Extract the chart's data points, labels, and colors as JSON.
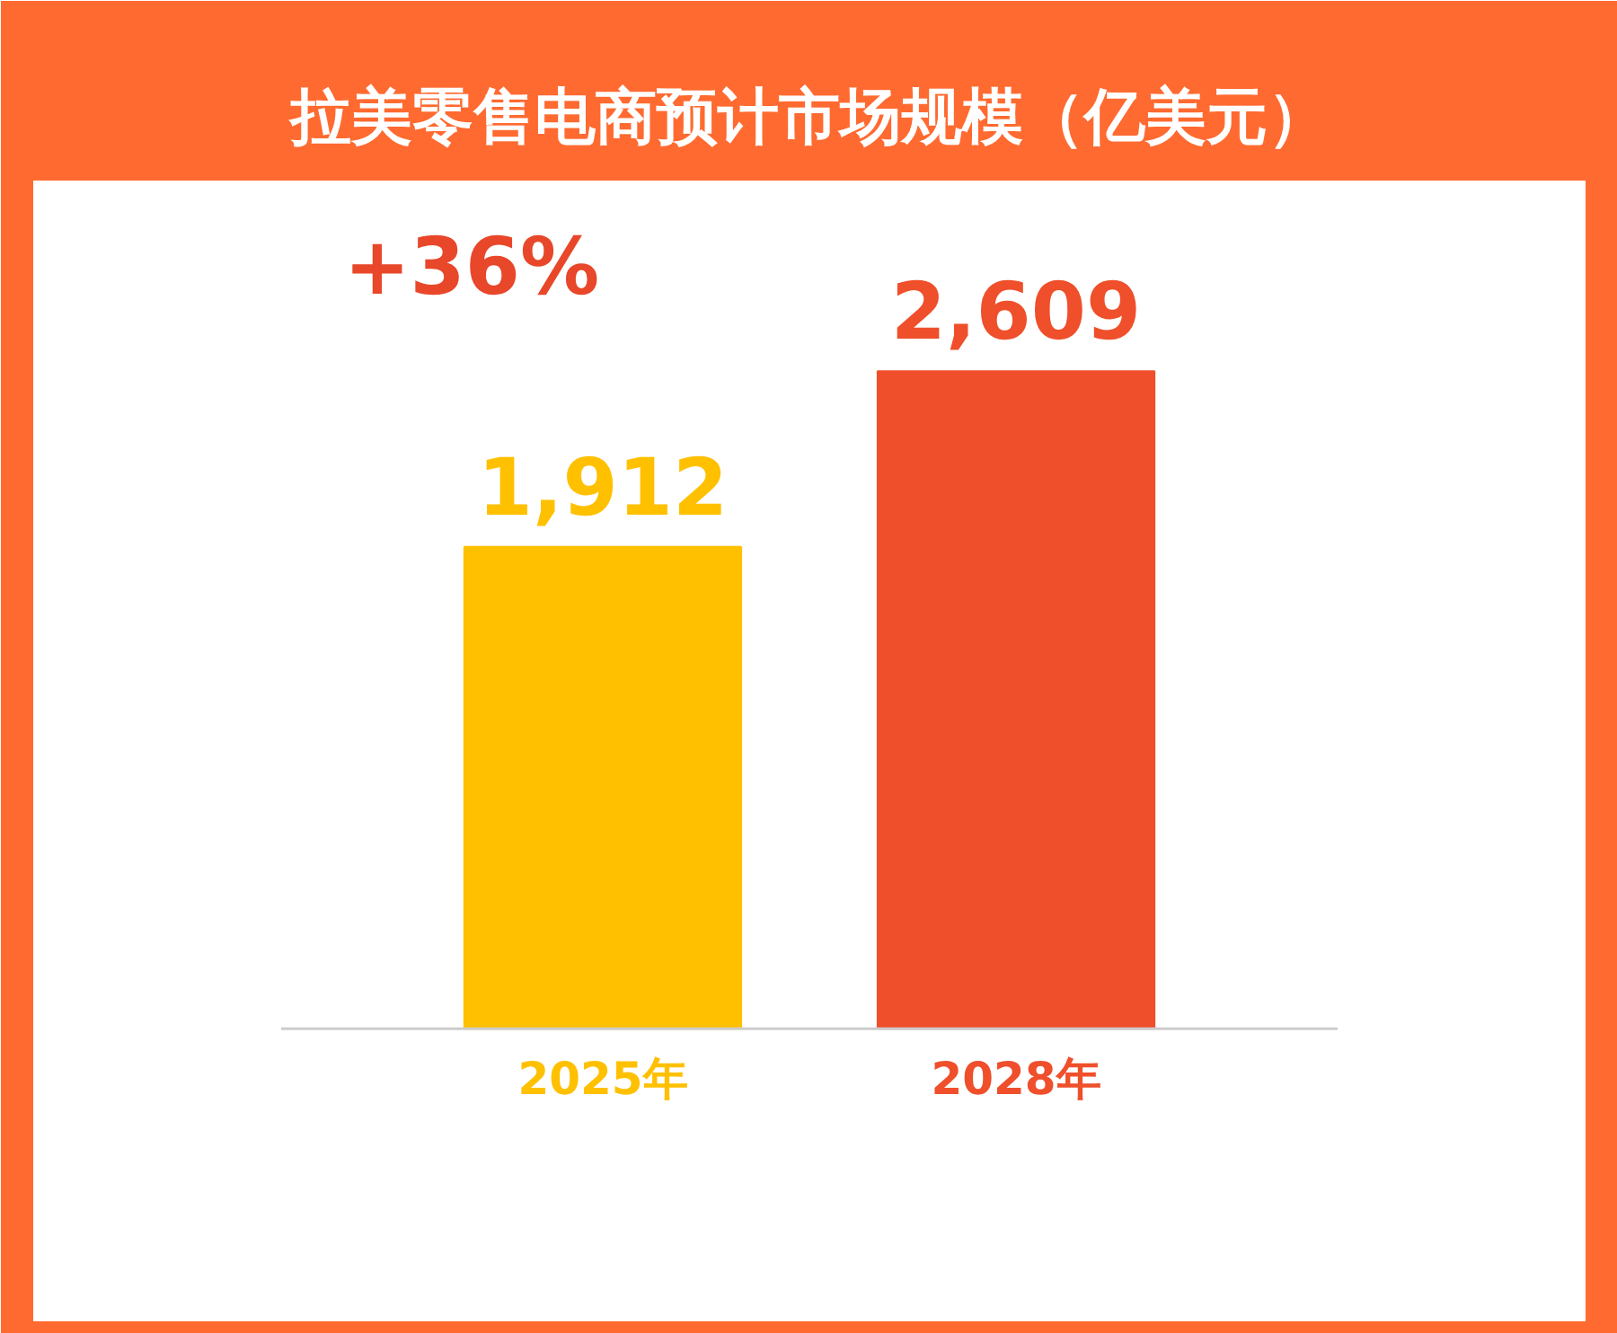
{
  "chart_data": {
    "type": "bar",
    "title": "拉美零售电商预计市场规模（亿美元）",
    "categories": [
      "2025年",
      "2028年"
    ],
    "values": [
      1912,
      2609
    ],
    "colors": [
      "#ffc000",
      "#ef4f2b"
    ],
    "value_labels": [
      "1,912",
      "2,609"
    ],
    "annotations": [
      "+36%"
    ]
  }
}
